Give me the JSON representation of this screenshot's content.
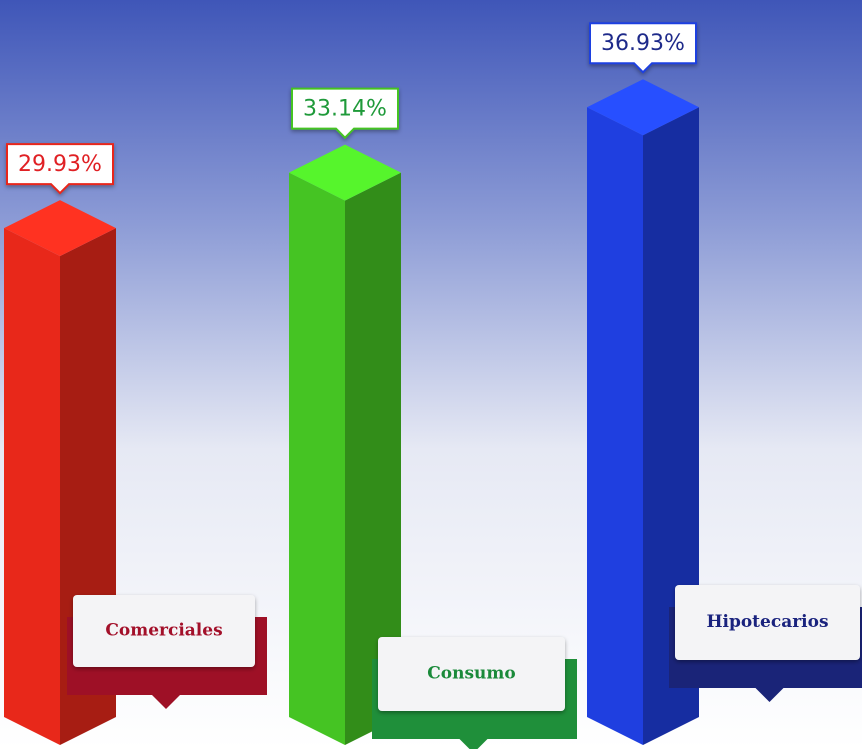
{
  "chart_data": {
    "type": "bar3d",
    "categories": [
      "Comerciales",
      "Consumo",
      "Hipotecarios"
    ],
    "values": [
      29.93,
      33.14,
      36.93
    ],
    "value_labels": [
      "29.93%",
      "33.14%",
      "36.93%"
    ],
    "colors": [
      "#e8281a",
      "#45c423",
      "#1f3fe0"
    ]
  }
}
